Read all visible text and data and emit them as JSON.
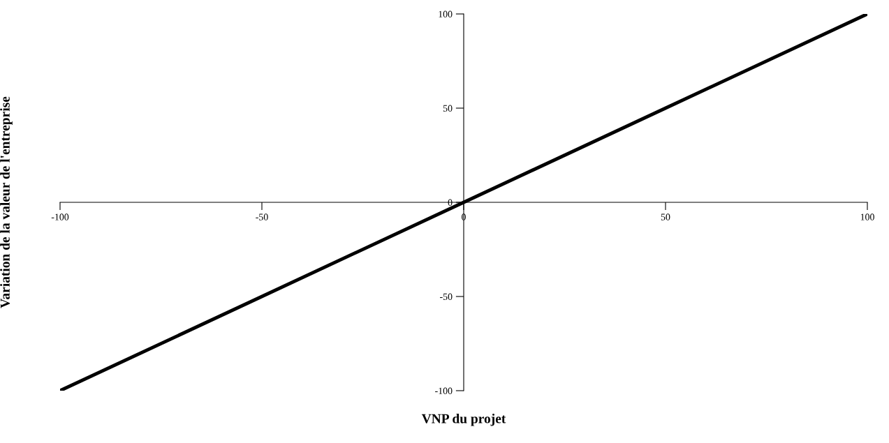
{
  "chart_data": {
    "type": "line",
    "xlabel": "VNP du projet",
    "ylabel": "Variation de la valeur de l'entreprise",
    "x": [
      -100,
      -50,
      0,
      50,
      100
    ],
    "series": [
      {
        "color": "#000000",
        "values": [
          -100,
          -50,
          0,
          50,
          100
        ]
      }
    ],
    "xlim": [
      -100,
      100
    ],
    "ylim": [
      -100,
      100
    ],
    "xticks": [
      -100,
      -50,
      0,
      50,
      100
    ],
    "yticks": [
      -100,
      -50,
      0,
      50,
      100
    ],
    "grid": false,
    "legend": false
  }
}
